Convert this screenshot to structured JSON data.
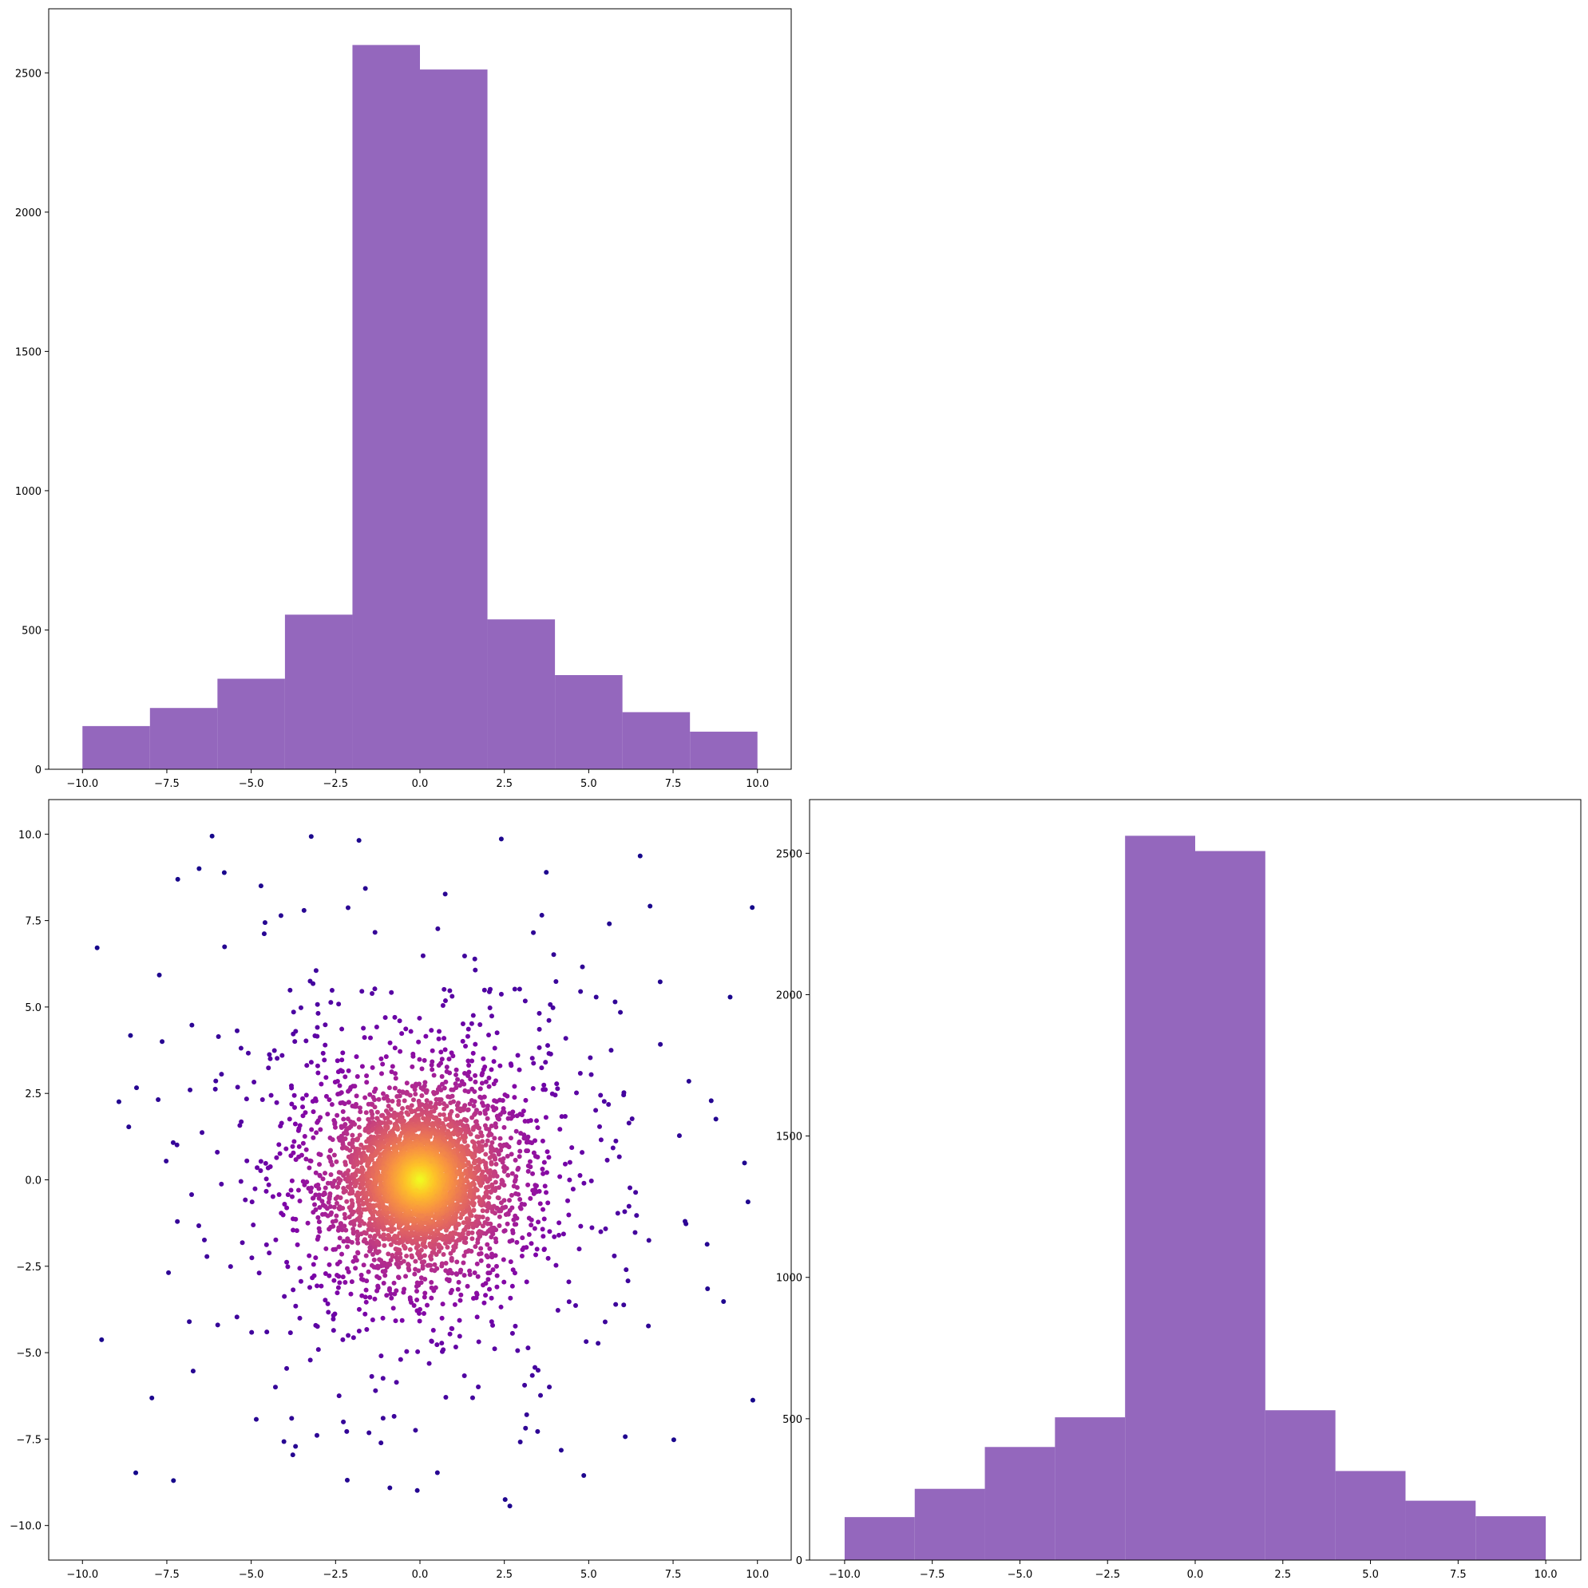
{
  "colors": {
    "bar_fill": "#9467bd",
    "scatter_colormap": "plasma",
    "background": "#ffffff"
  },
  "chart_data": [
    {
      "id": "top-left-histogram",
      "type": "bar",
      "subtype": "histogram",
      "title": "",
      "xlabel": "",
      "ylabel": "",
      "bin_edges": [
        -10,
        -8,
        -6,
        -4,
        -2,
        0,
        2,
        4,
        6,
        8,
        10
      ],
      "values": [
        155,
        220,
        325,
        555,
        2600,
        2512,
        538,
        338,
        205,
        135
      ],
      "xlim": [
        -11,
        11
      ],
      "ylim": [
        0,
        2730
      ],
      "xticks": [
        -10.0,
        -7.5,
        -5.0,
        -2.5,
        0.0,
        2.5,
        5.0,
        7.5,
        10.0
      ],
      "xtick_labels": [
        "−10.0",
        "−7.5",
        "−5.0",
        "−2.5",
        "0.0",
        "2.5",
        "5.0",
        "7.5",
        "10.0"
      ],
      "yticks": [
        0,
        500,
        1000,
        1500,
        2000,
        2500
      ],
      "ytick_labels": [
        "0",
        "500",
        "1000",
        "1500",
        "2000",
        "2500"
      ],
      "grid": false
    },
    {
      "id": "bottom-left-scatter",
      "type": "scatter",
      "title": "",
      "xlabel": "",
      "ylabel": "",
      "description_of_points": "about 5000 points spread over [-10,10]x[-10,10], densest at the origin; colour follows local density (plasma colormap: dark purple sparse, yellow dense)",
      "n_points": 5000,
      "xlim": [
        -11,
        11
      ],
      "ylim": [
        -11,
        11
      ],
      "xticks": [
        -10.0,
        -7.5,
        -5.0,
        -2.5,
        0.0,
        2.5,
        5.0,
        7.5,
        10.0
      ],
      "xtick_labels": [
        "−10.0",
        "−7.5",
        "−5.0",
        "−2.5",
        "0.0",
        "2.5",
        "5.0",
        "7.5",
        "10.0"
      ],
      "yticks": [
        -10.0,
        -7.5,
        -5.0,
        -2.5,
        0.0,
        2.5,
        5.0,
        7.5,
        10.0
      ],
      "ytick_labels": [
        "−10.0",
        "−7.5",
        "−5.0",
        "−2.5",
        "0.0",
        "2.5",
        "5.0",
        "7.5",
        "10.0"
      ],
      "grid": false
    },
    {
      "id": "bottom-right-histogram",
      "type": "bar",
      "subtype": "histogram",
      "title": "",
      "xlabel": "",
      "ylabel": "",
      "bin_edges": [
        -10,
        -8,
        -6,
        -4,
        -2,
        0,
        2,
        4,
        6,
        8,
        10
      ],
      "values": [
        152,
        252,
        400,
        505,
        2562,
        2508,
        530,
        315,
        210,
        155
      ],
      "xlim": [
        -11,
        11
      ],
      "ylim": [
        0,
        2690
      ],
      "xticks": [
        -10.0,
        -7.5,
        -5.0,
        -2.5,
        0.0,
        2.5,
        5.0,
        7.5,
        10.0
      ],
      "xtick_labels": [
        "−10.0",
        "−7.5",
        "−5.0",
        "−2.5",
        "0.0",
        "2.5",
        "5.0",
        "7.5",
        "10.0"
      ],
      "yticks": [
        0,
        500,
        1000,
        1500,
        2000,
        2500
      ],
      "ytick_labels": [
        "0",
        "500",
        "1000",
        "1500",
        "2000",
        "2500"
      ],
      "grid": false
    }
  ]
}
